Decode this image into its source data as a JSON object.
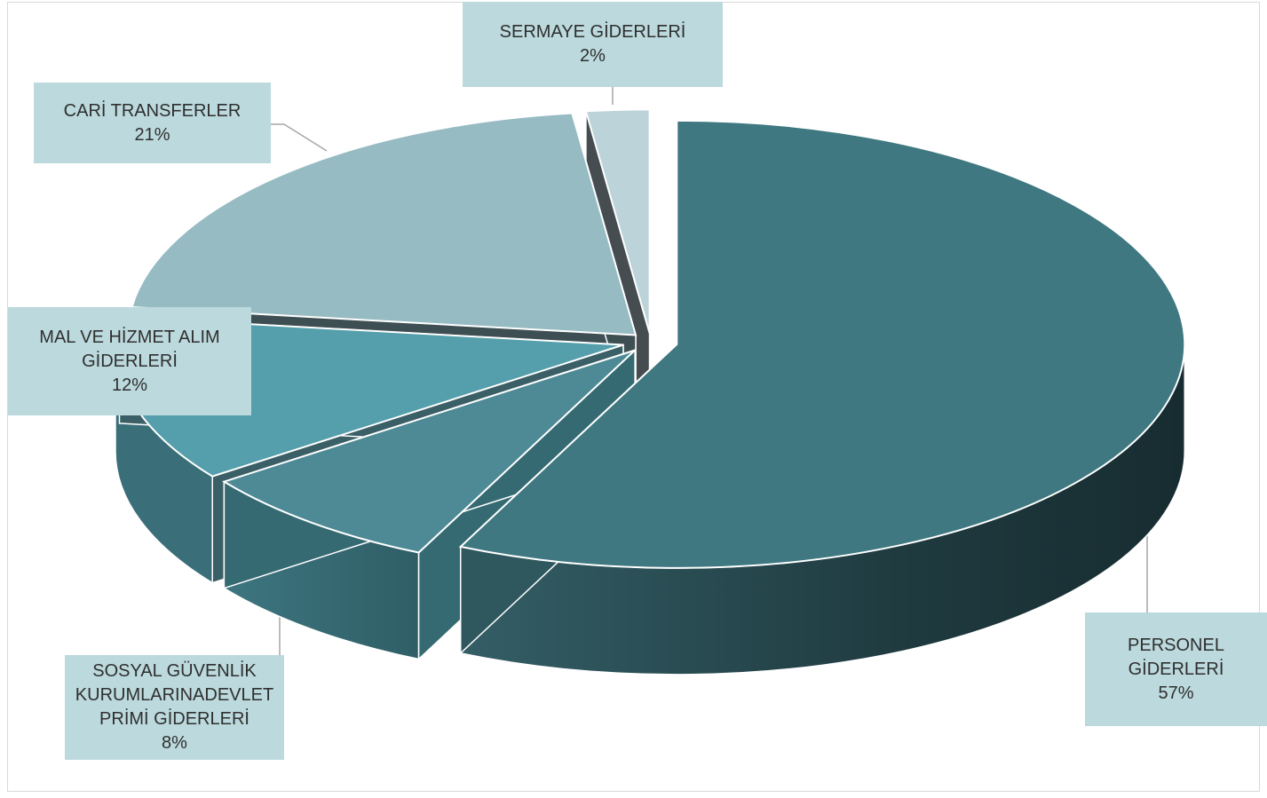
{
  "chart_data": {
    "type": "pie",
    "style": "3d exploded",
    "slices": [
      {
        "name": "PERSONEL GİDERLERİ",
        "label_lines": "PERSONEL\nGİDERLERİ",
        "percent_label": "57%",
        "value": 57,
        "color": "#3f7880"
      },
      {
        "name": "SOSYAL GÜVENLİK KURUMLARINADEVLET PRİMİ GİDERLERİ",
        "label_lines": "SOSYAL GÜVENLİK\nKURUMLARINADEVLET\nPRİMİ GİDERLERİ",
        "percent_label": "8%",
        "value": 8,
        "color": "#4e8a95"
      },
      {
        "name": "MAL VE HİZMET ALIM GİDERLERİ",
        "label_lines": "MAL VE HİZMET ALIM\nGİDERLERİ",
        "percent_label": "12%",
        "value": 12,
        "color": "#559eab"
      },
      {
        "name": "CARİ TRANSFERLER",
        "label_lines": "CARİ TRANSFERLER",
        "percent_label": "21%",
        "value": 21,
        "color": "#96bbc3"
      },
      {
        "name": "SERMAYE GİDERLERİ",
        "label_lines": "SERMAYE GİDERLERİ",
        "percent_label": "2%",
        "value": 2,
        "color": "#bcd3d9"
      }
    ],
    "label_background": "#bcd9dd",
    "leader_line_color": "#a6a6a6"
  }
}
